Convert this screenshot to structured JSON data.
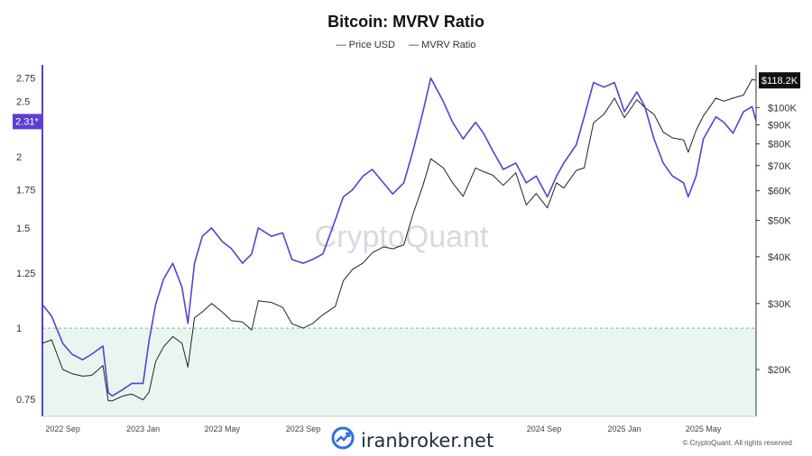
{
  "title": "Bitcoin: MVRV Ratio",
  "legend": [
    {
      "label": "Price USD",
      "color": "#333333"
    },
    {
      "label": "MVRV Ratio",
      "color": "#333333"
    }
  ],
  "watermark": "CryptoQuant",
  "brand": {
    "text": "iranbroker.net",
    "icon": "trend-chart-icon",
    "color": "#2f6fe0"
  },
  "copyright": "© CryptoQuant. All rights reserved",
  "colors": {
    "mvrv": "#5b3fd1",
    "price": "#222222",
    "zone_fill": "#e8f6ef",
    "zone_line": "#6fbf8a"
  },
  "chart_data": {
    "type": "line",
    "title": "Bitcoin: MVRV Ratio",
    "x_tick_labels": [
      "2022 Sep",
      "2023 Jan",
      "2023 May",
      "2023 Sep",
      "2024 Sep",
      "2025 Jan",
      "2025 May"
    ],
    "x_range": [
      "2022-08-01",
      "2025-07-20"
    ],
    "y_left": {
      "ticks": [
        "0.75",
        "1",
        "1.25",
        "1.5",
        "1.75",
        "2",
        "2.5",
        "2.75"
      ],
      "range": [
        0.7,
        2.9
      ],
      "scale": "log"
    },
    "y_right": {
      "ticks": [
        "$20K",
        "$30K",
        "$40K",
        "$50K",
        "$60K",
        "$70K",
        "$80K",
        "$90K",
        "$100K"
      ],
      "range": [
        15000,
        130000
      ],
      "scale": "log"
    },
    "current_mvrv_label": "2.31*",
    "current_price_label": "$118.2K",
    "undervalued_threshold": 1,
    "grid": false,
    "series": [
      {
        "name": "MVRV Ratio",
        "axis": "left",
        "x": [
          "2022-08-01",
          "2022-08-15",
          "2022-09-01",
          "2022-09-15",
          "2022-10-01",
          "2022-10-15",
          "2022-11-01",
          "2022-11-09",
          "2022-11-15",
          "2022-12-01",
          "2022-12-15",
          "2023-01-01",
          "2023-01-10",
          "2023-01-20",
          "2023-02-01",
          "2023-02-15",
          "2023-03-01",
          "2023-03-10",
          "2023-03-20",
          "2023-04-01",
          "2023-04-15",
          "2023-05-01",
          "2023-05-15",
          "2023-06-01",
          "2023-06-15",
          "2023-06-25",
          "2023-07-15",
          "2023-08-01",
          "2023-08-15",
          "2023-09-01",
          "2023-09-15",
          "2023-10-01",
          "2023-10-20",
          "2023-11-01",
          "2023-11-15",
          "2023-12-01",
          "2023-12-15",
          "2024-01-01",
          "2024-01-15",
          "2024-02-01",
          "2024-02-15",
          "2024-03-01",
          "2024-03-13",
          "2024-04-01",
          "2024-04-15",
          "2024-05-01",
          "2024-05-20",
          "2024-06-01",
          "2024-06-15",
          "2024-07-01",
          "2024-07-20",
          "2024-08-05",
          "2024-08-20",
          "2024-09-06",
          "2024-09-20",
          "2024-10-01",
          "2024-10-20",
          "2024-11-01",
          "2024-11-15",
          "2024-12-01",
          "2024-12-17",
          "2025-01-01",
          "2025-01-20",
          "2025-02-01",
          "2025-02-15",
          "2025-03-01",
          "2025-03-15",
          "2025-04-01",
          "2025-04-08",
          "2025-04-20",
          "2025-05-01",
          "2025-05-20",
          "2025-06-01",
          "2025-06-15",
          "2025-07-01",
          "2025-07-14",
          "2025-07-20"
        ],
        "values": [
          1.1,
          1.05,
          0.94,
          0.9,
          0.88,
          0.9,
          0.93,
          0.77,
          0.76,
          0.78,
          0.8,
          0.8,
          0.95,
          1.1,
          1.22,
          1.3,
          1.18,
          1.02,
          1.3,
          1.45,
          1.5,
          1.42,
          1.38,
          1.3,
          1.35,
          1.5,
          1.45,
          1.47,
          1.32,
          1.3,
          1.32,
          1.35,
          1.55,
          1.7,
          1.75,
          1.85,
          1.9,
          1.8,
          1.72,
          1.8,
          2.05,
          2.4,
          2.75,
          2.5,
          2.3,
          2.15,
          2.3,
          2.2,
          2.05,
          1.9,
          1.95,
          1.8,
          1.85,
          1.7,
          1.85,
          1.95,
          2.1,
          2.35,
          2.7,
          2.65,
          2.7,
          2.4,
          2.6,
          2.45,
          2.15,
          1.95,
          1.85,
          1.8,
          1.7,
          1.85,
          2.15,
          2.35,
          2.3,
          2.2,
          2.4,
          2.45,
          2.31
        ]
      },
      {
        "name": "Price USD",
        "axis": "right",
        "x": [
          "2022-08-01",
          "2022-08-15",
          "2022-09-01",
          "2022-09-15",
          "2022-10-01",
          "2022-10-15",
          "2022-11-01",
          "2022-11-09",
          "2022-11-15",
          "2022-12-01",
          "2022-12-15",
          "2023-01-01",
          "2023-01-10",
          "2023-01-20",
          "2023-02-01",
          "2023-02-15",
          "2023-03-01",
          "2023-03-10",
          "2023-03-20",
          "2023-04-01",
          "2023-04-15",
          "2023-05-01",
          "2023-05-15",
          "2023-06-01",
          "2023-06-15",
          "2023-06-25",
          "2023-07-15",
          "2023-08-01",
          "2023-08-15",
          "2023-09-01",
          "2023-09-15",
          "2023-10-01",
          "2023-10-20",
          "2023-11-01",
          "2023-11-15",
          "2023-12-01",
          "2023-12-15",
          "2024-01-01",
          "2024-01-15",
          "2024-02-01",
          "2024-02-15",
          "2024-03-01",
          "2024-03-13",
          "2024-04-01",
          "2024-04-15",
          "2024-05-01",
          "2024-05-20",
          "2024-06-01",
          "2024-06-15",
          "2024-07-01",
          "2024-07-20",
          "2024-08-05",
          "2024-08-20",
          "2024-09-06",
          "2024-09-20",
          "2024-10-01",
          "2024-10-20",
          "2024-11-01",
          "2024-11-15",
          "2024-12-01",
          "2024-12-17",
          "2025-01-01",
          "2025-01-20",
          "2025-02-01",
          "2025-02-15",
          "2025-03-01",
          "2025-03-15",
          "2025-04-01",
          "2025-04-08",
          "2025-04-20",
          "2025-05-01",
          "2025-05-20",
          "2025-06-01",
          "2025-06-15",
          "2025-07-01",
          "2025-07-14",
          "2025-07-20"
        ],
        "values": [
          23500,
          24000,
          20000,
          19500,
          19200,
          19300,
          20500,
          16500,
          16500,
          17000,
          17200,
          16600,
          17400,
          21000,
          23000,
          24500,
          23500,
          20300,
          27500,
          28500,
          30000,
          28500,
          27000,
          26800,
          25500,
          30500,
          30200,
          29300,
          26500,
          25800,
          26500,
          28000,
          29500,
          34500,
          37000,
          38500,
          41000,
          42500,
          42000,
          43000,
          52000,
          62000,
          73000,
          69000,
          63000,
          58000,
          69000,
          67500,
          66000,
          62000,
          67000,
          55000,
          59000,
          54000,
          63000,
          61000,
          68000,
          69000,
          91000,
          96000,
          106000,
          94000,
          105000,
          100000,
          96000,
          86000,
          83000,
          82000,
          76000,
          87000,
          95000,
          106000,
          104000,
          106000,
          108000,
          119000,
          118200
        ]
      }
    ]
  }
}
